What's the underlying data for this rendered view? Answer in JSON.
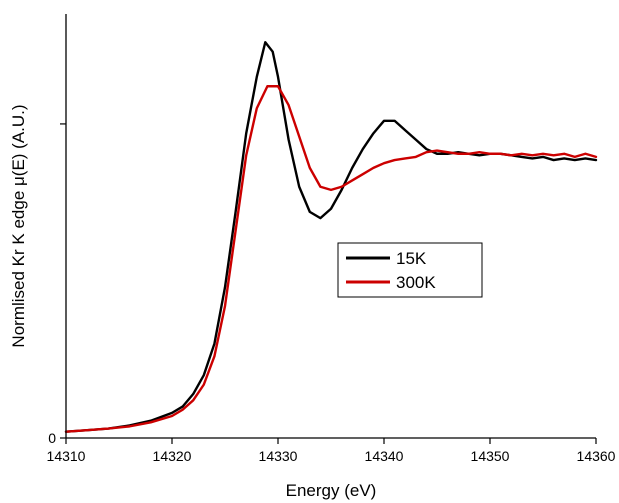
{
  "chart_data": {
    "type": "line",
    "title": "",
    "xlabel": "Energy (eV)",
    "ylabel": "Normlised Kr K edge μ(E) (A.U.)",
    "xlim": [
      14310,
      14360
    ],
    "ylim": [
      0,
      1.35
    ],
    "x_ticks": [
      14310,
      14320,
      14330,
      14340,
      14350,
      14360
    ],
    "x_tick_labels": [
      "14310",
      "14320",
      "14330",
      "14340",
      "14350",
      "14360"
    ],
    "y_ticks": [
      0,
      1
    ],
    "y_tick_labels": [
      "0",
      ""
    ],
    "grid": false,
    "legend_position": "center-right",
    "series": [
      {
        "name": "15K",
        "color": "#000000",
        "x": [
          14310,
          14312,
          14314,
          14316,
          14318,
          14320,
          14321,
          14322,
          14323,
          14324,
          14325,
          14326,
          14327,
          14328,
          14328.8,
          14329.5,
          14330,
          14331,
          14332,
          14333,
          14334,
          14335,
          14336,
          14337,
          14338,
          14339,
          14340,
          14341,
          14342,
          14343,
          14344,
          14345,
          14346,
          14347,
          14348,
          14349,
          14350,
          14351,
          14352,
          14353,
          14354,
          14355,
          14356,
          14357,
          14358,
          14359,
          14360
        ],
        "y": [
          0.02,
          0.025,
          0.03,
          0.04,
          0.055,
          0.08,
          0.1,
          0.14,
          0.2,
          0.3,
          0.48,
          0.72,
          0.97,
          1.15,
          1.26,
          1.23,
          1.15,
          0.95,
          0.8,
          0.72,
          0.7,
          0.73,
          0.79,
          0.86,
          0.92,
          0.97,
          1.01,
          1.01,
          0.98,
          0.95,
          0.92,
          0.905,
          0.905,
          0.91,
          0.905,
          0.9,
          0.905,
          0.905,
          0.9,
          0.895,
          0.89,
          0.895,
          0.885,
          0.89,
          0.885,
          0.89,
          0.885
        ]
      },
      {
        "name": "300K",
        "color": "#cc0000",
        "x": [
          14310,
          14312,
          14314,
          14316,
          14318,
          14320,
          14321,
          14322,
          14323,
          14324,
          14325,
          14326,
          14327,
          14328,
          14329,
          14330,
          14331,
          14332,
          14333,
          14334,
          14335,
          14336,
          14337,
          14338,
          14339,
          14340,
          14341,
          14342,
          14343,
          14344,
          14345,
          14346,
          14347,
          14348,
          14349,
          14350,
          14351,
          14352,
          14353,
          14354,
          14355,
          14356,
          14357,
          14358,
          14359,
          14360
        ],
        "y": [
          0.02,
          0.025,
          0.03,
          0.037,
          0.05,
          0.07,
          0.09,
          0.12,
          0.17,
          0.26,
          0.42,
          0.66,
          0.9,
          1.05,
          1.12,
          1.12,
          1.06,
          0.96,
          0.86,
          0.8,
          0.79,
          0.8,
          0.82,
          0.84,
          0.86,
          0.875,
          0.885,
          0.89,
          0.895,
          0.91,
          0.915,
          0.91,
          0.905,
          0.905,
          0.91,
          0.905,
          0.905,
          0.9,
          0.905,
          0.9,
          0.905,
          0.9,
          0.905,
          0.895,
          0.905,
          0.895
        ]
      }
    ]
  }
}
